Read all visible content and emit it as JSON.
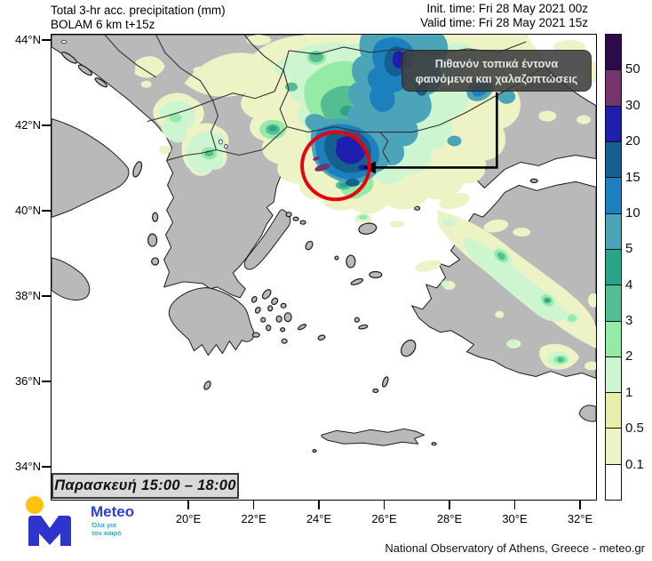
{
  "header": {
    "product_line1": "Total 3-hr acc. precipitation (mm)",
    "product_line2": "BOLAM 6 km t+15z",
    "init_time": "Init. time: Fri 28 May 2021 00z",
    "valid_time": "Valid time: Fri 28 May 2021 15z"
  },
  "map": {
    "lat_ticks": [
      "44°N",
      "42°N",
      "40°N",
      "38°N",
      "36°N",
      "34°N"
    ],
    "lon_ticks": [
      "20°E",
      "22°E",
      "24°E",
      "26°E",
      "28°E",
      "30°E",
      "32°E"
    ],
    "time_range_label": "Παρασκευή 15:00 – 18:00",
    "annotation": {
      "line1": "Πιθανόν τοπικά έντονα",
      "line2": "φαινόμενα και χαλαζοπτώσεις",
      "highlight_circle_color": "#e8000a"
    },
    "land_color": "#b9b9b9",
    "sea_color": "#ffffff"
  },
  "colorbar": {
    "unit": "mm",
    "labels": [
      "50",
      "30",
      "20",
      "15",
      "10",
      "5",
      "4",
      "3",
      "2",
      "1",
      "0.5",
      "0.1"
    ],
    "colors": [
      "#2b0b4a",
      "#74356b",
      "#1f1fad",
      "#15608f",
      "#1b80bd",
      "#4ba4b8",
      "#2aa488",
      "#55bd92",
      "#93eba6",
      "#cdf6d0",
      "#e7edad",
      "#eef3c5",
      "#ffffff"
    ]
  },
  "logo": {
    "brand": "Meteo",
    "tagline_line1": "Όλα για",
    "tagline_line2": "τον καιρό",
    "accent_yellow": "#ffc20e",
    "brand_blue": "#2d35cc"
  },
  "footer": {
    "attribution": "National Observatory of Athens, Greece - meteo.gr"
  }
}
